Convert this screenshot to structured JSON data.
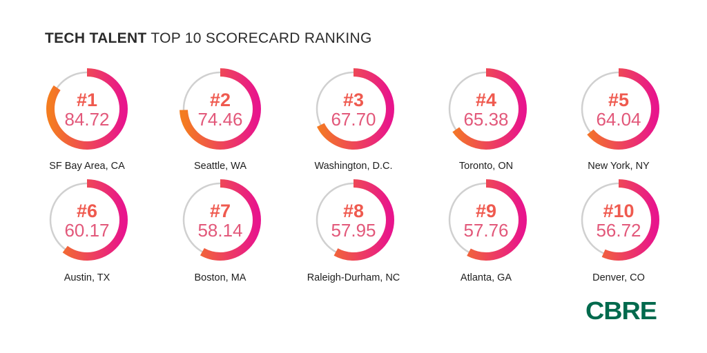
{
  "header": {
    "title_bold": "TECH TALENT",
    "title_light": "TOP 10 SCORECARD RANKING"
  },
  "chart_data": {
    "type": "donut",
    "title": "TECH TALENT TOP 10 SCORECARD RANKING",
    "scale_max": 100,
    "items": [
      {
        "rank": "#1",
        "score": "84.72",
        "value": 84.72,
        "market": "SF Bay Area, CA"
      },
      {
        "rank": "#2",
        "score": "74.46",
        "value": 74.46,
        "market": "Seattle, WA"
      },
      {
        "rank": "#3",
        "score": "67.70",
        "value": 67.7,
        "market": "Washington, D.C."
      },
      {
        "rank": "#4",
        "score": "65.38",
        "value": 65.38,
        "market": "Toronto, ON"
      },
      {
        "rank": "#5",
        "score": "64.04",
        "value": 64.04,
        "market": "New York, NY"
      },
      {
        "rank": "#6",
        "score": "60.17",
        "value": 60.17,
        "market": "Austin, TX"
      },
      {
        "rank": "#7",
        "score": "58.14",
        "value": 58.14,
        "market": "Boston, MA"
      },
      {
        "rank": "#8",
        "score": "57.95",
        "value": 57.95,
        "market": "Raleigh-Durham, NC"
      },
      {
        "rank": "#9",
        "score": "57.76",
        "value": 57.76,
        "market": "Atlanta, GA"
      },
      {
        "rank": "#10",
        "score": "56.72",
        "value": 56.72,
        "market": "Denver, CO"
      }
    ],
    "colors": {
      "gradient_start": "#f47c20",
      "gradient_end": "#e8158c",
      "track": "#d0d0d0",
      "rank_text": "#ef5a4f",
      "score_text": "#e2587a",
      "label_text": "#1e1e1e"
    }
  },
  "logo": {
    "text": "CBRE",
    "color": "#006a4d"
  }
}
